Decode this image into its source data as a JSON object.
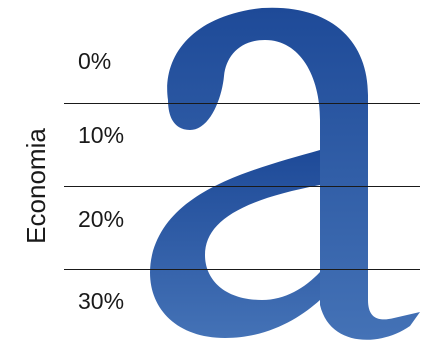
{
  "graphic": {
    "letter_icon": "lowercase-a-letter-icon",
    "color_top": "#1e4a98",
    "color_bottom": "#4472b6"
  },
  "scale": {
    "labels": [
      "0%",
      "10%",
      "20%",
      "30%"
    ]
  },
  "side_label": "Economia"
}
